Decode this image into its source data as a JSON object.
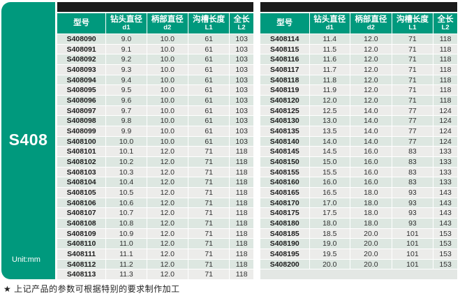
{
  "sidebar": {
    "series": "S408",
    "unit": "Unit:mm"
  },
  "columns": {
    "model": "型号",
    "d1": {
      "name": "钻头直径",
      "sub": "d1"
    },
    "d2": {
      "name": "柄部直径",
      "sub": "d2"
    },
    "l1": {
      "name": "沟槽长度",
      "sub": "L1"
    },
    "l2": {
      "name": "全长",
      "sub": "L2"
    }
  },
  "left_table": {
    "rows": [
      [
        "S408090",
        "9.0",
        "10.0",
        "61",
        "103"
      ],
      [
        "S408091",
        "9.1",
        "10.0",
        "61",
        "103"
      ],
      [
        "S408092",
        "9.2",
        "10.0",
        "61",
        "103"
      ],
      [
        "S408093",
        "9.3",
        "10.0",
        "61",
        "103"
      ],
      [
        "S408094",
        "9.4",
        "10.0",
        "61",
        "103"
      ],
      [
        "S408095",
        "9.5",
        "10.0",
        "61",
        "103"
      ],
      [
        "S408096",
        "9.6",
        "10.0",
        "61",
        "103"
      ],
      [
        "S408097",
        "9.7",
        "10.0",
        "61",
        "103"
      ],
      [
        "S408098",
        "9.8",
        "10.0",
        "61",
        "103"
      ],
      [
        "S408099",
        "9.9",
        "10.0",
        "61",
        "103"
      ],
      [
        "S408100",
        "10.0",
        "10.0",
        "61",
        "103"
      ],
      [
        "S408101",
        "10.1",
        "12.0",
        "71",
        "118"
      ],
      [
        "S408102",
        "10.2",
        "12.0",
        "71",
        "118"
      ],
      [
        "S408103",
        "10.3",
        "12.0",
        "71",
        "118"
      ],
      [
        "S408104",
        "10.4",
        "12.0",
        "71",
        "118"
      ],
      [
        "S408105",
        "10.5",
        "12.0",
        "71",
        "118"
      ],
      [
        "S408106",
        "10.6",
        "12.0",
        "71",
        "118"
      ],
      [
        "S408107",
        "10.7",
        "12.0",
        "71",
        "118"
      ],
      [
        "S408108",
        "10.8",
        "12.0",
        "71",
        "118"
      ],
      [
        "S408109",
        "10.9",
        "12.0",
        "71",
        "118"
      ],
      [
        "S408110",
        "11.0",
        "12.0",
        "71",
        "118"
      ],
      [
        "S408111",
        "11.1",
        "12.0",
        "71",
        "118"
      ],
      [
        "S408112",
        "11.2",
        "12.0",
        "71",
        "118"
      ],
      [
        "S408113",
        "11.3",
        "12.0",
        "71",
        "118"
      ]
    ]
  },
  "right_table": {
    "rows": [
      [
        "S408114",
        "11.4",
        "12.0",
        "71",
        "118"
      ],
      [
        "S408115",
        "11.5",
        "12.0",
        "71",
        "118"
      ],
      [
        "S408116",
        "11.6",
        "12.0",
        "71",
        "118"
      ],
      [
        "S408117",
        "11.7",
        "12.0",
        "71",
        "118"
      ],
      [
        "S408118",
        "11.8",
        "12.0",
        "71",
        "118"
      ],
      [
        "S408119",
        "11.9",
        "12.0",
        "71",
        "118"
      ],
      [
        "S408120",
        "12.0",
        "12.0",
        "71",
        "118"
      ],
      [
        "S408125",
        "12.5",
        "14.0",
        "77",
        "124"
      ],
      [
        "S408130",
        "13.0",
        "14.0",
        "77",
        "124"
      ],
      [
        "S408135",
        "13.5",
        "14.0",
        "77",
        "124"
      ],
      [
        "S408140",
        "14.0",
        "14.0",
        "77",
        "124"
      ],
      [
        "S408145",
        "14.5",
        "16.0",
        "83",
        "133"
      ],
      [
        "S408150",
        "15.0",
        "16.0",
        "83",
        "133"
      ],
      [
        "S408155",
        "15.5",
        "16.0",
        "83",
        "133"
      ],
      [
        "S408160",
        "16.0",
        "16.0",
        "83",
        "133"
      ],
      [
        "S408165",
        "16.5",
        "18.0",
        "93",
        "143"
      ],
      [
        "S408170",
        "17.0",
        "18.0",
        "93",
        "143"
      ],
      [
        "S408175",
        "17.5",
        "18.0",
        "93",
        "143"
      ],
      [
        "S408180",
        "18.0",
        "18.0",
        "93",
        "143"
      ],
      [
        "S408185",
        "18.5",
        "20.0",
        "101",
        "153"
      ],
      [
        "S408190",
        "19.0",
        "20.0",
        "101",
        "153"
      ],
      [
        "S408195",
        "19.5",
        "20.0",
        "101",
        "153"
      ],
      [
        "S408200",
        "20.0",
        "20.0",
        "101",
        "153"
      ]
    ]
  },
  "footnote": "★ 上记产品的参数可根据特别的要求制作加工",
  "colors": {
    "teal": "#00997D",
    "top_bar": "#1B1B1B",
    "row_green": "#DDE7E1",
    "row_gray": "#ECECEA",
    "filler_row": "#E3E7E4"
  }
}
